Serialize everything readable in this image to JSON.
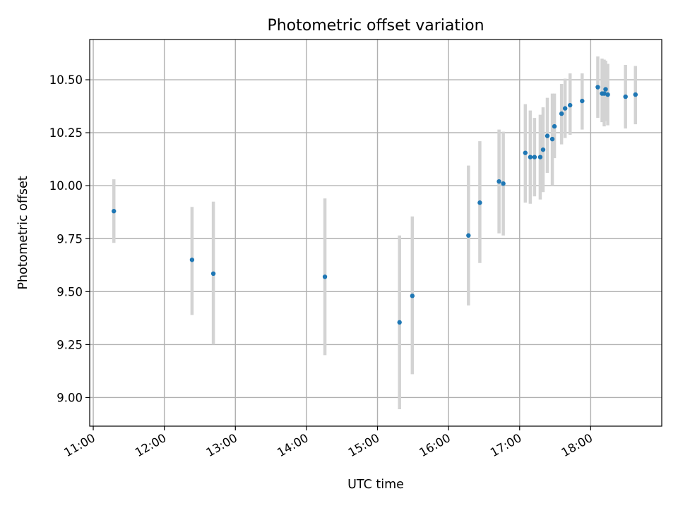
{
  "chart_data": {
    "type": "scatter",
    "title": "Photometric offset variation",
    "xlabel": "UTC time",
    "ylabel": "Photometric offset",
    "x_unit": "hour",
    "xlim": [
      10.95,
      19.0
    ],
    "ylim": [
      8.865,
      10.69
    ],
    "grid": true,
    "x_ticks": [
      {
        "value": 11,
        "label": "11:00"
      },
      {
        "value": 12,
        "label": "12:00"
      },
      {
        "value": 13,
        "label": "13:00"
      },
      {
        "value": 14,
        "label": "14:00"
      },
      {
        "value": 15,
        "label": "15:00"
      },
      {
        "value": 16,
        "label": "16:00"
      },
      {
        "value": 17,
        "label": "17:00"
      },
      {
        "value": 18,
        "label": "18:00"
      }
    ],
    "y_ticks": [
      {
        "value": 9.0,
        "label": "9.00"
      },
      {
        "value": 9.25,
        "label": "9.25"
      },
      {
        "value": 9.5,
        "label": "9.50"
      },
      {
        "value": 9.75,
        "label": "9.75"
      },
      {
        "value": 10.0,
        "label": "10.00"
      },
      {
        "value": 10.25,
        "label": "10.25"
      },
      {
        "value": 10.5,
        "label": "10.50"
      }
    ],
    "colors": {
      "points": "#1f77b4",
      "errorbars": "#d3d3d3",
      "grid": "#b0b0b0"
    },
    "points": [
      {
        "x": 11.29,
        "y": 9.88,
        "low": 9.73,
        "high": 10.03
      },
      {
        "x": 12.39,
        "y": 9.65,
        "low": 9.39,
        "high": 9.9
      },
      {
        "x": 12.69,
        "y": 9.585,
        "low": 9.25,
        "high": 9.925
      },
      {
        "x": 14.26,
        "y": 9.57,
        "low": 9.2,
        "high": 9.94
      },
      {
        "x": 15.31,
        "y": 9.355,
        "low": 8.945,
        "high": 9.765
      },
      {
        "x": 15.49,
        "y": 9.48,
        "low": 9.11,
        "high": 9.855
      },
      {
        "x": 16.28,
        "y": 9.765,
        "low": 9.435,
        "high": 10.095
      },
      {
        "x": 16.44,
        "y": 9.92,
        "low": 9.635,
        "high": 10.21
      },
      {
        "x": 16.71,
        "y": 10.02,
        "low": 9.775,
        "high": 10.265
      },
      {
        "x": 16.77,
        "y": 10.01,
        "low": 9.765,
        "high": 10.255
      },
      {
        "x": 17.08,
        "y": 10.155,
        "low": 9.92,
        "high": 10.385
      },
      {
        "x": 17.15,
        "y": 10.135,
        "low": 9.915,
        "high": 10.355
      },
      {
        "x": 17.21,
        "y": 10.135,
        "low": 9.95,
        "high": 10.32
      },
      {
        "x": 17.29,
        "y": 10.135,
        "low": 9.935,
        "high": 10.335
      },
      {
        "x": 17.33,
        "y": 10.17,
        "low": 9.97,
        "high": 10.37
      },
      {
        "x": 17.39,
        "y": 10.235,
        "low": 10.06,
        "high": 10.415
      },
      {
        "x": 17.46,
        "y": 10.22,
        "low": 10.0,
        "high": 10.435
      },
      {
        "x": 17.49,
        "y": 10.28,
        "low": 10.13,
        "high": 10.435
      },
      {
        "x": 17.59,
        "y": 10.34,
        "low": 10.195,
        "high": 10.48
      },
      {
        "x": 17.64,
        "y": 10.365,
        "low": 10.225,
        "high": 10.505
      },
      {
        "x": 17.71,
        "y": 10.38,
        "low": 10.24,
        "high": 10.53
      },
      {
        "x": 17.88,
        "y": 10.4,
        "low": 10.265,
        "high": 10.53
      },
      {
        "x": 18.1,
        "y": 10.465,
        "low": 10.32,
        "high": 10.61
      },
      {
        "x": 18.16,
        "y": 10.435,
        "low": 10.3,
        "high": 10.6
      },
      {
        "x": 18.19,
        "y": 10.435,
        "low": 10.28,
        "high": 10.595
      },
      {
        "x": 18.21,
        "y": 10.455,
        "low": 10.305,
        "high": 10.59
      },
      {
        "x": 18.24,
        "y": 10.43,
        "low": 10.285,
        "high": 10.575
      },
      {
        "x": 18.49,
        "y": 10.42,
        "low": 10.27,
        "high": 10.57
      },
      {
        "x": 18.63,
        "y": 10.43,
        "low": 10.29,
        "high": 10.565
      }
    ]
  }
}
